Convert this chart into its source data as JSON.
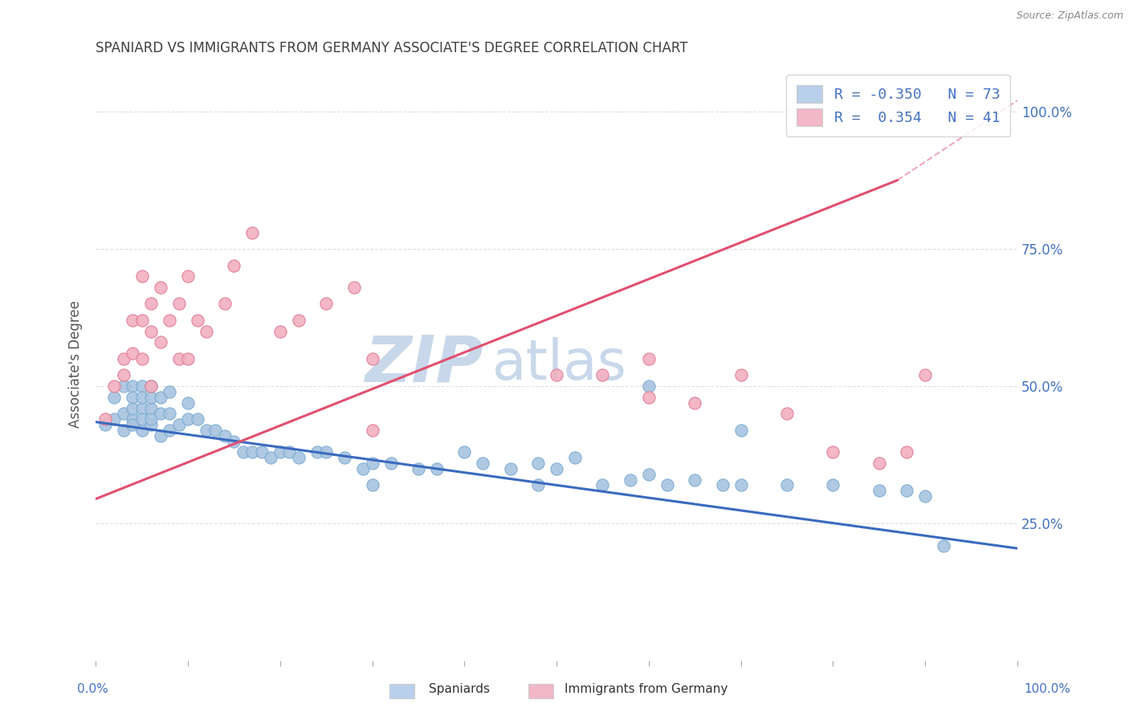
{
  "title": "SPANIARD VS IMMIGRANTS FROM GERMANY ASSOCIATE'S DEGREE CORRELATION CHART",
  "source": "Source: ZipAtlas.com",
  "ylabel": "Associate's Degree",
  "right_yticks": [
    0.25,
    0.5,
    0.75,
    1.0
  ],
  "right_yticklabels": [
    "25.0%",
    "50.0%",
    "75.0%",
    "100.0%"
  ],
  "legend_entries": [
    {
      "label_r": "R = -0.350",
      "label_n": "N = 73",
      "color": "#b8d0ea"
    },
    {
      "label_r": "R =  0.354",
      "label_n": "N = 41",
      "color": "#f2b8c8"
    }
  ],
  "series_blue": {
    "R": -0.35,
    "color": "#a8c4e0",
    "edge_color": "#7aaad0",
    "line_color": "#3a6abf",
    "line_start_y": 0.435,
    "line_end_y": 0.205
  },
  "series_pink": {
    "R": 0.354,
    "color": "#f2b0c0",
    "edge_color": "#e07890",
    "line_color": "#e05070",
    "line_start_y": 0.295,
    "line_end_y": 0.875,
    "line_solid_end_x": 0.87,
    "line_dash_start_x": 0.87,
    "line_dash_end_x": 1.0,
    "line_dash_end_y": 1.02
  },
  "watermark_zip": "ZIP",
  "watermark_atlas": "atlas",
  "watermark_color": "#c8d8ea",
  "background_color": "#ffffff",
  "grid_color": "#e0e0e0",
  "title_color": "#404040",
  "axis_label_color": "#4472c4",
  "blue_scatter_x": [
    0.01,
    0.02,
    0.02,
    0.03,
    0.03,
    0.03,
    0.04,
    0.04,
    0.04,
    0.04,
    0.04,
    0.05,
    0.05,
    0.05,
    0.05,
    0.05,
    0.06,
    0.06,
    0.06,
    0.06,
    0.06,
    0.07,
    0.07,
    0.07,
    0.08,
    0.08,
    0.08,
    0.09,
    0.1,
    0.1,
    0.11,
    0.12,
    0.13,
    0.14,
    0.15,
    0.16,
    0.17,
    0.18,
    0.19,
    0.2,
    0.21,
    0.22,
    0.24,
    0.25,
    0.27,
    0.29,
    0.3,
    0.32,
    0.35,
    0.37,
    0.4,
    0.42,
    0.45,
    0.48,
    0.5,
    0.52,
    0.55,
    0.58,
    0.6,
    0.62,
    0.65,
    0.68,
    0.7,
    0.75,
    0.8,
    0.85,
    0.88,
    0.9,
    0.92,
    0.6,
    0.7,
    0.48,
    0.3
  ],
  "blue_scatter_y": [
    0.43,
    0.44,
    0.48,
    0.45,
    0.5,
    0.42,
    0.44,
    0.5,
    0.48,
    0.43,
    0.46,
    0.42,
    0.46,
    0.5,
    0.44,
    0.48,
    0.43,
    0.46,
    0.5,
    0.44,
    0.48,
    0.41,
    0.45,
    0.48,
    0.42,
    0.45,
    0.49,
    0.43,
    0.44,
    0.47,
    0.44,
    0.42,
    0.42,
    0.41,
    0.4,
    0.38,
    0.38,
    0.38,
    0.37,
    0.38,
    0.38,
    0.37,
    0.38,
    0.38,
    0.37,
    0.35,
    0.36,
    0.36,
    0.35,
    0.35,
    0.38,
    0.36,
    0.35,
    0.36,
    0.35,
    0.37,
    0.32,
    0.33,
    0.34,
    0.32,
    0.33,
    0.32,
    0.32,
    0.32,
    0.32,
    0.31,
    0.31,
    0.3,
    0.21,
    0.5,
    0.42,
    0.32,
    0.32
  ],
  "pink_scatter_x": [
    0.01,
    0.02,
    0.03,
    0.03,
    0.04,
    0.04,
    0.05,
    0.05,
    0.05,
    0.06,
    0.06,
    0.06,
    0.07,
    0.07,
    0.08,
    0.09,
    0.09,
    0.1,
    0.1,
    0.11,
    0.12,
    0.14,
    0.15,
    0.17,
    0.2,
    0.22,
    0.25,
    0.28,
    0.3,
    0.5,
    0.55,
    0.6,
    0.65,
    0.7,
    0.75,
    0.8,
    0.85,
    0.88,
    0.9,
    0.6,
    0.3
  ],
  "pink_scatter_y": [
    0.44,
    0.5,
    0.52,
    0.55,
    0.56,
    0.62,
    0.55,
    0.62,
    0.7,
    0.6,
    0.65,
    0.5,
    0.58,
    0.68,
    0.62,
    0.55,
    0.65,
    0.55,
    0.7,
    0.62,
    0.6,
    0.65,
    0.72,
    0.78,
    0.6,
    0.62,
    0.65,
    0.68,
    0.55,
    0.52,
    0.52,
    0.48,
    0.47,
    0.52,
    0.45,
    0.38,
    0.36,
    0.38,
    0.52,
    0.55,
    0.42
  ],
  "xlim": [
    0.0,
    1.0
  ],
  "ylim": [
    0.0,
    1.08
  ]
}
